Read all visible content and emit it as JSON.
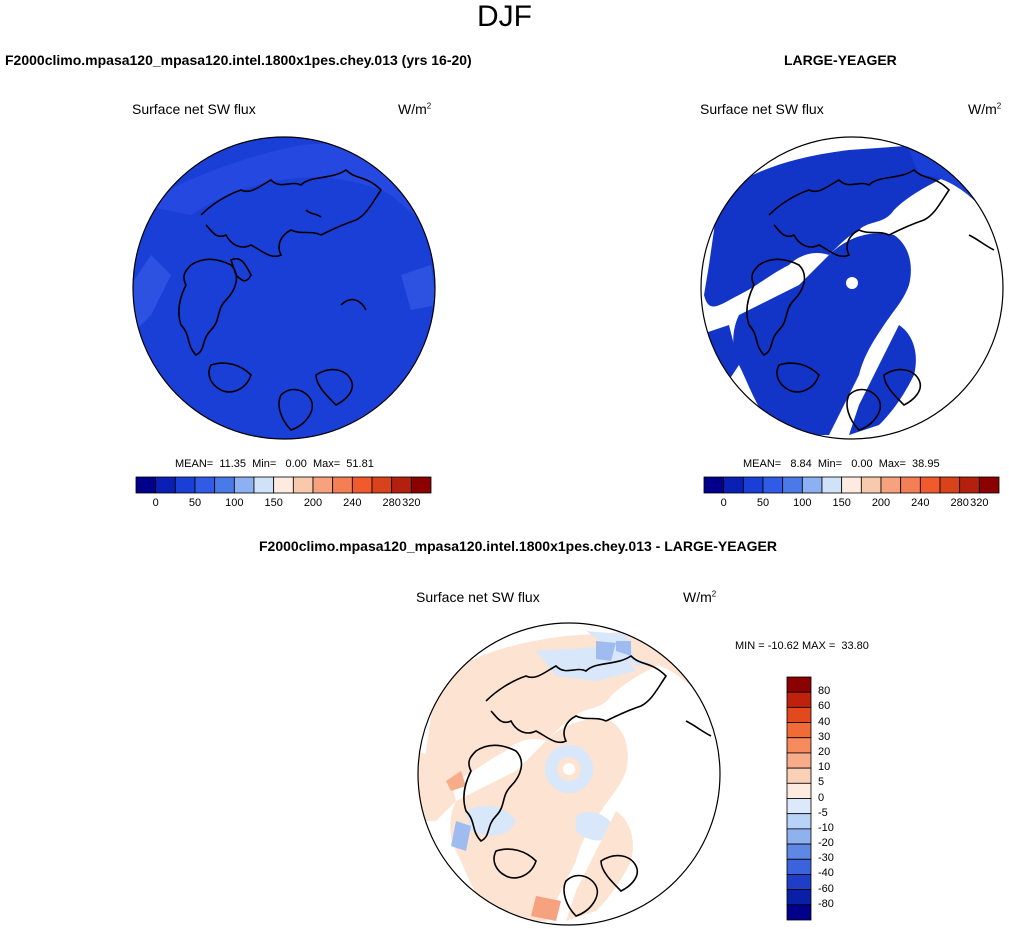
{
  "season": "DJF",
  "panels": {
    "test": {
      "title": "F2000climo.mpasa120_mpasa120.intel.1800x1pes.chey.013 (yrs 16-20)",
      "variable": "Surface net SW flux",
      "units": "W/m",
      "units_exp": "2",
      "stats": "MEAN=  11.35  Min=   0.00  Max=  51.81"
    },
    "ref": {
      "title": "LARGE-YEAGER",
      "variable": "Surface net SW flux",
      "units": "W/m",
      "units_exp": "2",
      "stats": "MEAN=   8.84  Min=   0.00  Max=  38.95"
    },
    "diff": {
      "title": "F2000climo.mpasa120_mpasa120.intel.1800x1pes.chey.013 - LARGE-YEAGER",
      "variable": "Surface net SW flux",
      "units": "W/m",
      "units_exp": "2",
      "stats": "MIN = -10.62 MAX =  33.80"
    }
  },
  "abs_colorbar": {
    "colors": [
      "#00008b",
      "#0a1fb3",
      "#1a3fd6",
      "#2f5be6",
      "#4a7ae8",
      "#8db0f2",
      "#cfe2f7",
      "#fdebe0",
      "#f7c9ad",
      "#f6a27e",
      "#f47f55",
      "#f05a2c",
      "#d9431c",
      "#b3200e",
      "#8b0000"
    ],
    "labels": [
      "0",
      "50",
      "100",
      "150",
      "200",
      "240",
      "280",
      "320"
    ]
  },
  "diff_colorbar": {
    "colors": [
      "#8b0000",
      "#c0210d",
      "#e24a1d",
      "#f26b36",
      "#f68c5e",
      "#f8ad8a",
      "#fad0b6",
      "#fdebe0",
      "#dce9fa",
      "#b9d2f7",
      "#8fb2ef",
      "#5f87e6",
      "#3a63dc",
      "#1e3ec7",
      "#0a1fa8",
      "#00008b"
    ],
    "labels": [
      "80",
      "60",
      "40",
      "30",
      "20",
      "10",
      "5",
      "0",
      "-5",
      "-10",
      "-20",
      "-30",
      "-40",
      "-60",
      "-80"
    ]
  },
  "map_colors": {
    "test_fill": "#1a3fd6",
    "test_dark": "#1435c4",
    "ref_fill": "#1235c8",
    "diff_pos": "#fce3d2",
    "diff_neg": "#d8e7fa",
    "diff_strong_neg": "#9ebcf0",
    "diff_strong_pos": "#f6a27e"
  }
}
